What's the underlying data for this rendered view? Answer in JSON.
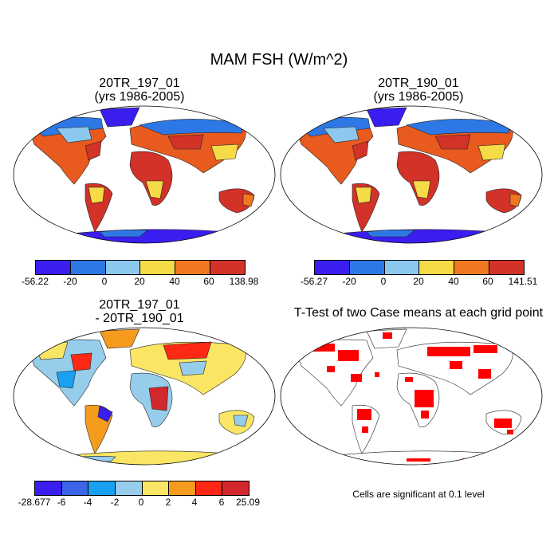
{
  "title": "MAM FSH (W/m^2)",
  "panels": [
    {
      "title_line1": "20TR_197_01",
      "title_line2": "(yrs 1986-2005)"
    },
    {
      "title_line1": "20TR_190_01",
      "title_line2": "(yrs 1986-2005)"
    },
    {
      "title_line1": "20TR_197_01",
      "title_line2": "- 20TR_190_01"
    },
    {
      "title_line1": "T-Test of two Case means at each grid point",
      "title_line2": ""
    }
  ],
  "colorbars": [
    {
      "colors": [
        "#3a1ef0",
        "#2e78e6",
        "#8cc8ee",
        "#f5dc46",
        "#f07820",
        "#d23228"
      ],
      "labels": [
        "-56.22",
        "-20",
        "0",
        "20",
        "40",
        "60",
        "138.98"
      ]
    },
    {
      "colors": [
        "#3a1ef0",
        "#2e78e6",
        "#8cc8ee",
        "#f5dc46",
        "#f07820",
        "#d23228"
      ],
      "labels": [
        "-56.27",
        "-20",
        "0",
        "20",
        "40",
        "60",
        "141.51"
      ]
    },
    {
      "colors": [
        "#3a1ef0",
        "#3c64e6",
        "#1aa0f0",
        "#96cdeb",
        "#fae664",
        "#f59b1e",
        "#ff2814",
        "#d2282d"
      ],
      "labels": [
        "-28.677",
        "-6",
        "-4",
        "-2",
        "0",
        "2",
        "4",
        "6",
        "25.09"
      ]
    }
  ],
  "note": "Cells are significant at 0.1 level"
}
